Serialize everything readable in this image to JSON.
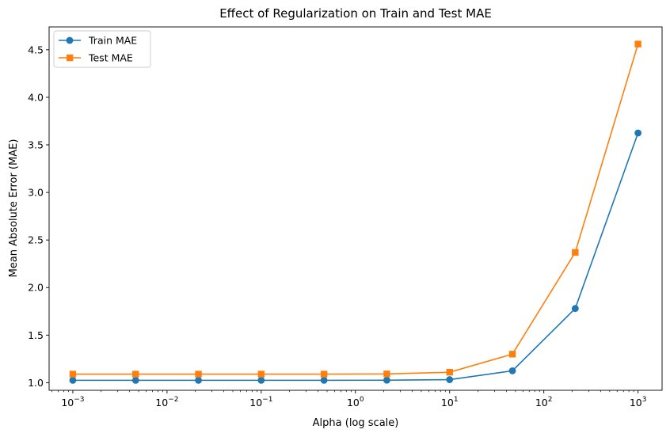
{
  "chart_data": {
    "type": "line",
    "title": "Effect of Regularization on Train and Test MAE",
    "xlabel": "Alpha (log scale)",
    "ylabel": "Mean Absolute Error (MAE)",
    "x_scale": "log",
    "x_ticks": [
      {
        "value": 0.001,
        "base": "10",
        "exp": "−3"
      },
      {
        "value": 0.01,
        "base": "10",
        "exp": "−2"
      },
      {
        "value": 0.1,
        "base": "10",
        "exp": "−1"
      },
      {
        "value": 1,
        "base": "10",
        "exp": "0"
      },
      {
        "value": 10,
        "base": "10",
        "exp": "1"
      },
      {
        "value": 100,
        "base": "10",
        "exp": "2"
      },
      {
        "value": 1000,
        "base": "10",
        "exp": "3"
      }
    ],
    "y_ticks": [
      "1.0",
      "1.5",
      "2.0",
      "2.5",
      "3.0",
      "3.5",
      "4.0",
      "4.5"
    ],
    "xlim": [
      0.00056,
      1800
    ],
    "ylim": [
      0.92,
      4.74
    ],
    "grid": false,
    "legend_position": "top-left",
    "x": [
      0.001,
      0.004642,
      0.021544,
      0.1,
      0.464159,
      2.154435,
      10,
      46.415888,
      215.443469,
      1000
    ],
    "series": [
      {
        "name": "Train MAE",
        "marker": "circle",
        "color": "#1f77b4",
        "values": [
          1.025,
          1.025,
          1.025,
          1.025,
          1.025,
          1.026,
          1.032,
          1.125,
          1.78,
          3.625
        ]
      },
      {
        "name": "Test MAE",
        "marker": "square",
        "color": "#ff7f0e",
        "values": [
          1.09,
          1.09,
          1.09,
          1.09,
          1.09,
          1.092,
          1.11,
          1.3,
          2.37,
          4.56
        ]
      }
    ]
  }
}
